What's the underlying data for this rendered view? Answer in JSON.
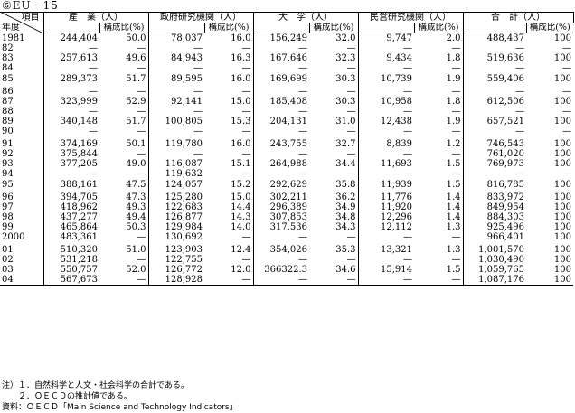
{
  "caption": "⑥EU－15",
  "header": {
    "item": "項目",
    "year": "年度",
    "groups": [
      "産　業（人）",
      "政府研究機関（人）",
      "大　学（人）",
      "民営研究機関（人）",
      "合　計（人）"
    ],
    "ratio": "構成比(%)"
  },
  "rows": [
    {
      "year": "1981",
      "v": [
        "244,404",
        "50.0",
        "78,037",
        "16.0",
        "156,249",
        "32.0",
        "9,747",
        "2.0",
        "488,437",
        "100"
      ]
    },
    {
      "year": "82",
      "v": [
        "—",
        "—",
        "—",
        "—",
        "—",
        "—",
        "—",
        "—",
        "—",
        "—"
      ]
    },
    {
      "year": "83",
      "v": [
        "257,613",
        "49.6",
        "84,943",
        "16.3",
        "167,646",
        "32.3",
        "9,434",
        "1.8",
        "519,636",
        "100"
      ]
    },
    {
      "year": "84",
      "v": [
        "—",
        "—",
        "—",
        "—",
        "—",
        "—",
        "—",
        "—",
        "—",
        "—"
      ]
    },
    {
      "year": "85",
      "v": [
        "289,373",
        "51.7",
        "89,595",
        "16.0",
        "169,699",
        "30.3",
        "10,739",
        "1.9",
        "559,406",
        "100"
      ]
    },
    {
      "gap": true
    },
    {
      "year": "86",
      "v": [
        "—",
        "—",
        "—",
        "—",
        "—",
        "—",
        "—",
        "—",
        "—",
        "—"
      ]
    },
    {
      "year": "87",
      "v": [
        "323,999",
        "52.9",
        "92,141",
        "15.0",
        "185,408",
        "30.3",
        "10,958",
        "1.8",
        "612,506",
        "100"
      ]
    },
    {
      "year": "88",
      "v": [
        "—",
        "—",
        "—",
        "—",
        "—",
        "—",
        "—",
        "—",
        "—",
        "—"
      ]
    },
    {
      "year": "89",
      "v": [
        "340,148",
        "51.7",
        "100,805",
        "15.3",
        "204,131",
        "31.0",
        "12,438",
        "1.9",
        "657,521",
        "100"
      ]
    },
    {
      "year": "90",
      "v": [
        "—",
        "—",
        "—",
        "—",
        "—",
        "—",
        "—",
        "—",
        "—",
        "—"
      ]
    },
    {
      "gap": true
    },
    {
      "year": "91",
      "v": [
        "374,169",
        "50.1",
        "119,780",
        "16.0",
        "243,755",
        "32.7",
        "8,839",
        "1.2",
        "746,543",
        "100"
      ]
    },
    {
      "year": "92",
      "v": [
        "375,844",
        "—",
        "—",
        "—",
        "—",
        "—",
        "—",
        "—",
        "761,020",
        "100"
      ]
    },
    {
      "year": "93",
      "v": [
        "377,205",
        "49.0",
        "116,087",
        "15.1",
        "264,988",
        "34.4",
        "11,693",
        "1.5",
        "769,973",
        "100"
      ]
    },
    {
      "year": "94",
      "v": [
        "—",
        "—",
        "119,632",
        "—",
        "—",
        "—",
        "—",
        "—",
        "—",
        "—"
      ]
    },
    {
      "year": "95",
      "v": [
        "388,161",
        "47.5",
        "124,057",
        "15.2",
        "292,629",
        "35.8",
        "11,939",
        "1.5",
        "816,785",
        "100"
      ]
    },
    {
      "gap": true
    },
    {
      "year": "96",
      "v": [
        "394,705",
        "47.3",
        "125,280",
        "15.0",
        "302,211",
        "36.2",
        "11,776",
        "1.4",
        "833,972",
        "100"
      ]
    },
    {
      "year": "97",
      "v": [
        "418,962",
        "49.3",
        "122,683",
        "14.4",
        "296,389",
        "34.9",
        "11,920",
        "1.4",
        "849,954",
        "100"
      ]
    },
    {
      "year": "98",
      "v": [
        "437,277",
        "49.4",
        "126,877",
        "14.3",
        "307,853",
        "34.8",
        "12,296",
        "1.4",
        "884,303",
        "100"
      ]
    },
    {
      "year": "99",
      "v": [
        "465,864",
        "50.3",
        "129,984",
        "14.0",
        "317,536",
        "34.3",
        "12,112",
        "1.3",
        "925,496",
        "100"
      ]
    },
    {
      "year": "2000",
      "v": [
        "483,361",
        "—",
        "130,692",
        "—",
        "—",
        "—",
        "—",
        "—",
        "966,401",
        "100"
      ]
    },
    {
      "gap": true
    },
    {
      "year": "01",
      "v": [
        "510,320",
        "51.0",
        "123,903",
        "12.4",
        "354,026",
        "35.3",
        "13,321",
        "1.3",
        "1,001,570",
        "100"
      ]
    },
    {
      "year": "02",
      "v": [
        "531,218",
        "—",
        "122,755",
        "—",
        "—",
        "—",
        "—",
        "—",
        "1,030,490",
        "100"
      ]
    },
    {
      "year": "03",
      "v": [
        "550,757",
        "52.0",
        "126,772",
        "12.0",
        "366322.3",
        "34.6",
        "15,914",
        "1.5",
        "1,059,765",
        "100"
      ]
    },
    {
      "year": "04",
      "v": [
        "567,673",
        "—",
        "128,928",
        "—",
        "—",
        "—",
        "—",
        "—",
        "1,087,176",
        "100"
      ]
    }
  ],
  "notes": [
    "注）１．自然科学と人文・社会科学の合計である。",
    "　　２．ＯＥＣＤの推計値である。",
    "資料：ＯＥＣＤ「Main Science and Technology Indicators」"
  ]
}
